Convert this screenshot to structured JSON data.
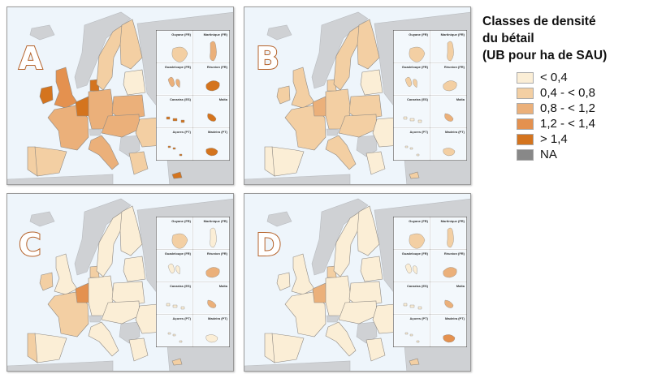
{
  "legend": {
    "title_lines": [
      "Classes de densité",
      "du bétail",
      "(UB pour ha de SAU)"
    ],
    "items": [
      {
        "label": "< 0,4",
        "color": "#fbeed6"
      },
      {
        "label": "0,4 - < 0,8",
        "color": "#f3cfa3"
      },
      {
        "label": "0,8 - < 1,2",
        "color": "#ebb07a"
      },
      {
        "label": "1,2 - < 1,4",
        "color": "#e4914f"
      },
      {
        "label": "> 1,4",
        "color": "#d4741e"
      },
      {
        "label": "NA",
        "color": "#888888"
      }
    ]
  },
  "inset_labels": [
    "Guyane (FR)",
    "Martinique (FR)",
    "Guadeloupe (FR)",
    "Réunion (FR)",
    "Canarias (ES)",
    "Malta",
    "Açores (PT)",
    "Madeira (PT)"
  ],
  "panels": [
    {
      "letter": "A",
      "levels": {
        "ireland": 4,
        "uk": 3,
        "france": 2,
        "benelux": 4,
        "germany": 2,
        "denmark": 4,
        "sweden": 1,
        "finland": 1,
        "baltics": 0,
        "poland": 2,
        "spain": 1,
        "portugal": 1,
        "italy": 2,
        "central": 2,
        "romania": 1,
        "greece": 1,
        "cyprus": 4
      },
      "inset_levels": [
        1,
        2,
        2,
        4,
        4,
        4,
        4,
        4
      ]
    },
    {
      "letter": "B",
      "levels": {
        "ireland": 1,
        "uk": 1,
        "france": 1,
        "benelux": 2,
        "germany": 1,
        "denmark": 1,
        "sweden": 1,
        "finland": 1,
        "baltics": 0,
        "poland": 1,
        "spain": 0,
        "portugal": 0,
        "italy": 1,
        "central": 1,
        "romania": 0,
        "greece": 0,
        "cyprus": 1
      },
      "inset_levels": [
        1,
        1,
        1,
        1,
        0,
        2,
        0,
        1
      ]
    },
    {
      "letter": "C",
      "levels": {
        "ireland": 1,
        "uk": 0,
        "france": 1,
        "benelux": 3,
        "germany": 0,
        "denmark": 1,
        "sweden": 0,
        "finland": 0,
        "baltics": 0,
        "poland": 0,
        "spain": 0,
        "portugal": 1,
        "italy": 0,
        "central": 0,
        "romania": 0,
        "greece": 0,
        "cyprus": 1
      },
      "inset_levels": [
        1,
        0,
        0,
        2,
        0,
        2,
        0,
        0
      ]
    },
    {
      "letter": "D",
      "levels": {
        "ireland": 0,
        "uk": 0,
        "france": 0,
        "benelux": 2,
        "germany": 0,
        "denmark": 1,
        "sweden": 0,
        "finland": 0,
        "baltics": 0,
        "poland": 0,
        "spain": 0,
        "portugal": 0,
        "italy": 0,
        "central": 0,
        "romania": 0,
        "greece": 0,
        "cyprus": 1
      },
      "inset_levels": [
        1,
        1,
        0,
        2,
        0,
        2,
        0,
        3
      ]
    }
  ]
}
